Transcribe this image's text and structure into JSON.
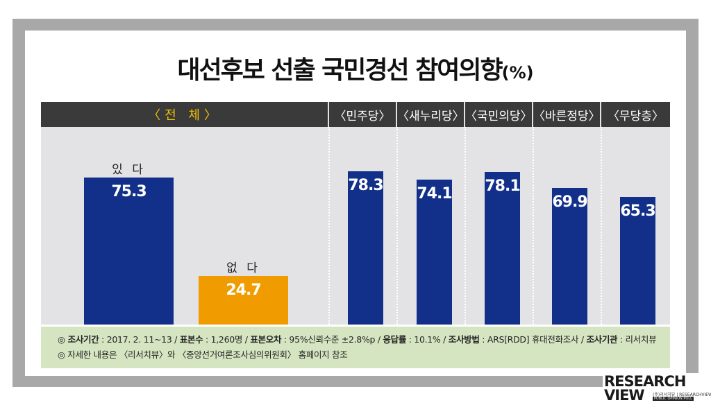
{
  "title": "대선후보 선출 국민경선 참여의향",
  "title_unit": "(%)",
  "chart_data": {
    "type": "bar",
    "unit": "%",
    "groups": [
      {
        "header": "〈전   체〉",
        "categories": [
          "있 다",
          "없 다"
        ],
        "values": [
          75.3,
          24.7
        ],
        "colors": [
          "#12308a",
          "#f09c00"
        ]
      },
      {
        "header": "〈민주당〉",
        "categories": [
          ""
        ],
        "values": [
          78.3
        ],
        "colors": [
          "#12308a"
        ]
      },
      {
        "header": "〈새누리당〉",
        "categories": [
          ""
        ],
        "values": [
          74.1
        ],
        "colors": [
          "#12308a"
        ]
      },
      {
        "header": "〈국민의당〉",
        "categories": [
          ""
        ],
        "values": [
          78.1
        ],
        "colors": [
          "#12308a"
        ]
      },
      {
        "header": "〈바른정당〉",
        "categories": [
          ""
        ],
        "values": [
          69.9
        ],
        "colors": [
          "#12308a"
        ]
      },
      {
        "header": "〈무당층〉",
        "categories": [
          ""
        ],
        "values": [
          65.3
        ],
        "colors": [
          "#12308a"
        ]
      }
    ],
    "value_labels": [
      "75.3",
      "24.7",
      "78.3",
      "74.1",
      "78.1",
      "69.9",
      "65.3"
    ],
    "ylim": [
      0,
      100
    ]
  },
  "notes": {
    "line1": [
      {
        "label": "◎ 조사기간",
        "text": " : 2017. 2. 11~13  /  "
      },
      {
        "label": "표본수",
        "text": " : 1,260명  /  "
      },
      {
        "label": "표본오차",
        "text": " : 95%신뢰수준 ±2.8%p  /  "
      },
      {
        "label": "응답률",
        "text": " :  10.1%  /  "
      },
      {
        "label": "조사방법",
        "text": " : ARS[RDD] 휴대전화조사  /  "
      },
      {
        "label": "조사기관",
        "text": " : 리서치뷰"
      }
    ],
    "line2": "◎ 자세한 내용은 〈리서치뷰〉와 〈중앙선거여론조사심의위원회〉 홈페이지 참조"
  },
  "logo": {
    "word1": "RESEARCH",
    "word2": "VIEW",
    "sub": "(주)리서치뷰 | RESEARCHVIEW",
    "sub2": "PUBLIC OPINION POLL"
  }
}
